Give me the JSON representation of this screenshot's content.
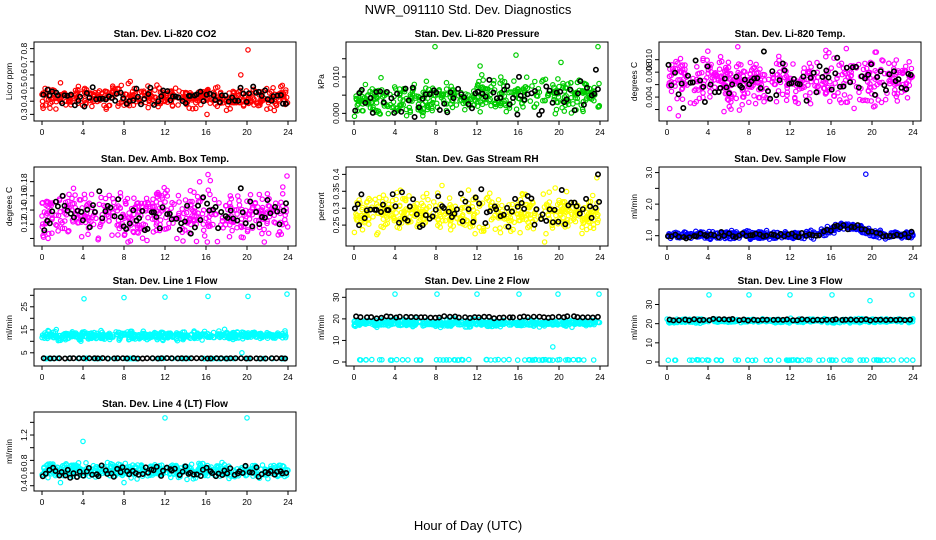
{
  "figure": {
    "title": "NWR_091110  Std. Dev. Diagnostics",
    "xlabel": "Hour of Day (UTC)"
  },
  "colors": {
    "red": "#ff0000",
    "green": "#00cc00",
    "magenta": "#ff00ff",
    "yellow": "#ffff00",
    "blue": "#0000ff",
    "cyan": "#00ffff",
    "black": "#000000"
  },
  "chart_data": [
    {
      "type": "scatter",
      "title": "Stan. Dev. Li-820 CO2",
      "ylabel": "Licor ppm",
      "xlim": [
        0,
        24
      ],
      "xticks": [
        0,
        4,
        8,
        12,
        16,
        20,
        24
      ],
      "ylim": [
        0.28,
        0.82
      ],
      "yticks": [
        0.3,
        0.4,
        0.5,
        0.6,
        0.7,
        0.8
      ],
      "series": [
        {
          "name": "all",
          "color": "red",
          "count": 420,
          "center": 0.43,
          "spread": 0.04,
          "outliers": [
            [
              20.1,
              0.79
            ],
            [
              19.4,
              0.6
            ],
            [
              16.1,
              0.3
            ],
            [
              8.6,
              0.55
            ],
            [
              1.8,
              0.54
            ]
          ]
        },
        {
          "name": "hourly",
          "color": "black",
          "count": 80,
          "center": 0.43,
          "spread": 0.035,
          "outliers": []
        }
      ]
    },
    {
      "type": "scatter",
      "title": "Stan. Dev. Li-820 Pressure",
      "ylabel": "kPa",
      "xlim": [
        0,
        24
      ],
      "xticks": [
        0,
        4,
        8,
        12,
        16,
        20,
        24
      ],
      "ylim": [
        -0.001,
        0.0185
      ],
      "yticks": [
        0.0,
        0.005,
        0.01,
        0.015
      ],
      "ytick_labels": [
        "0.000",
        "",
        "0.010",
        ""
      ],
      "series": [
        {
          "name": "all",
          "color": "green",
          "count": 420,
          "center": 0.0035,
          "spread": 0.0022,
          "trend": 0.0035,
          "outliers": [
            [
              7.9,
              0.0183
            ],
            [
              15.8,
              0.016
            ],
            [
              23.8,
              0.0183
            ],
            [
              12.3,
              0.013
            ],
            [
              20.2,
              0.014
            ]
          ]
        },
        {
          "name": "hourly",
          "color": "black",
          "count": 70,
          "center": 0.0035,
          "spread": 0.0022,
          "trend": 0.0035,
          "outliers": [
            [
              23.6,
              0.012
            ],
            [
              16.1,
              0.01
            ]
          ]
        }
      ]
    },
    {
      "type": "scatter",
      "title": "Stan. Dev. Li-820 Temp.",
      "ylabel": "degrees C",
      "xlim": [
        0,
        24
      ],
      "xticks": [
        0,
        4,
        8,
        12,
        16,
        20,
        24
      ],
      "ylim": [
        0.0008,
        0.0122
      ],
      "yticks": [
        0.002,
        0.004,
        0.006,
        0.008,
        0.01
      ],
      "ytick_labels": [
        "",
        "0.004",
        "",
        "0.008",
        "0.010"
      ],
      "series": [
        {
          "name": "all",
          "color": "magenta",
          "count": 460,
          "center": 0.0066,
          "spread": 0.0019,
          "outliers": [
            [
              1.1,
              0.001
            ],
            [
              15.5,
              0.0115
            ],
            [
              20.3,
              0.0112
            ]
          ]
        },
        {
          "name": "hourly",
          "color": "black",
          "count": 80,
          "center": 0.0066,
          "spread": 0.0017,
          "outliers": []
        }
      ]
    },
    {
      "type": "scatter",
      "title": "Stan. Dev. Amb. Box Temp.",
      "ylabel": "degrees C",
      "xlim": [
        0,
        24
      ],
      "xticks": [
        0,
        4,
        8,
        12,
        16,
        20,
        24
      ],
      "ylim": [
        0.095,
        0.195
      ],
      "yticks": [
        0.1,
        0.12,
        0.14,
        0.16,
        0.18
      ],
      "ytick_labels": [
        "",
        "0.12",
        "0.14",
        "0.16",
        "0.18"
      ],
      "series": [
        {
          "name": "all",
          "color": "magenta",
          "count": 460,
          "center": 0.134,
          "spread": 0.017,
          "outliers": [
            [
              0.6,
              0.1
            ],
            [
              16.2,
              0.19
            ],
            [
              23.9,
              0.188
            ]
          ]
        },
        {
          "name": "hourly",
          "color": "black",
          "count": 80,
          "center": 0.134,
          "spread": 0.013,
          "outliers": []
        }
      ]
    },
    {
      "type": "scatter",
      "title": "Stan. Dev. Gas Stream RH",
      "ylabel": "percent",
      "xlim": [
        0,
        24
      ],
      "xticks": [
        0,
        4,
        8,
        12,
        16,
        20,
        24
      ],
      "ylim": [
        0.2,
        0.41
      ],
      "yticks": [
        0.25,
        0.3,
        0.35,
        0.4
      ],
      "series": [
        {
          "name": "all",
          "color": "yellow",
          "count": 460,
          "center": 0.285,
          "spread": 0.028,
          "outliers": [
            [
              18.6,
              0.2
            ],
            [
              23.7,
              0.39
            ]
          ]
        },
        {
          "name": "hourly",
          "color": "black",
          "count": 80,
          "center": 0.295,
          "spread": 0.028,
          "outliers": [
            [
              23.8,
              0.4
            ],
            [
              0.5,
              0.25
            ]
          ]
        }
      ]
    },
    {
      "type": "scatter",
      "title": "Stan. Dev. Sample Flow",
      "ylabel": "ml/min",
      "xlim": [
        0,
        24
      ],
      "xticks": [
        0,
        4,
        8,
        12,
        16,
        20,
        24
      ],
      "ylim": [
        0.8,
        3.05
      ],
      "yticks": [
        1.0,
        1.5,
        2.0,
        2.5,
        3.0
      ],
      "ytick_labels": [
        "1.0",
        "",
        "2.0",
        "",
        "3.0"
      ],
      "series": [
        {
          "name": "all",
          "color": "blue",
          "count": 420,
          "center": 1.02,
          "spread": 0.06,
          "hump": 0.28,
          "outliers": [
            [
              19.4,
              2.95
            ]
          ]
        },
        {
          "name": "hourly",
          "color": "black",
          "count": 70,
          "center": 1.02,
          "spread": 0.05,
          "hump": 0.28,
          "outliers": []
        }
      ]
    },
    {
      "type": "scatter",
      "title": "Stan. Dev. Line 1 Flow",
      "ylabel": "ml/min",
      "xlim": [
        0,
        24
      ],
      "xticks": [
        0,
        4,
        8,
        12,
        16,
        20,
        24
      ],
      "ylim": [
        1,
        31
      ],
      "yticks": [
        5,
        10,
        15,
        20,
        25,
        30
      ],
      "ytick_labels": [
        "5",
        "",
        "15",
        "",
        "25",
        ""
      ],
      "series": [
        {
          "name": "all",
          "color": "cyan",
          "count": 500,
          "center": 12.5,
          "spread": 0.9,
          "outliers": [
            [
              4.1,
              28.5
            ],
            [
              8.0,
              29.0
            ],
            [
              12.0,
              29.2
            ],
            [
              16.2,
              29.5
            ],
            [
              20.1,
              29.5
            ],
            [
              23.9,
              30.5
            ],
            [
              19.5,
              5.0
            ]
          ]
        },
        {
          "name": "low",
          "color": "cyan",
          "count": 60,
          "center": 2.5,
          "spread": 0.05,
          "outliers": []
        },
        {
          "name": "hourly",
          "color": "black",
          "count": 50,
          "center": 2.6,
          "spread": 0.05,
          "outliers": []
        }
      ]
    },
    {
      "type": "scatter",
      "title": "Stan. Dev. Line 2 Flow",
      "ylabel": "ml/min",
      "xlim": [
        0,
        24
      ],
      "xticks": [
        0,
        4,
        8,
        12,
        16,
        20,
        24
      ],
      "ylim": [
        0,
        32
      ],
      "yticks": [
        0,
        10,
        20,
        30
      ],
      "series": [
        {
          "name": "all",
          "color": "cyan",
          "count": 500,
          "center": 18.0,
          "spread": 0.8,
          "outliers": [
            [
              4.0,
              31.5
            ],
            [
              8.1,
              31.5
            ],
            [
              12.0,
              31.5
            ],
            [
              16.1,
              31.5
            ],
            [
              19.9,
              31.5
            ],
            [
              23.9,
              31.5
            ],
            [
              19.4,
              7.0
            ]
          ]
        },
        {
          "name": "low",
          "color": "cyan",
          "count": 60,
          "center": 1.0,
          "spread": 0.08,
          "outliers": []
        },
        {
          "name": "hourly",
          "color": "black",
          "count": 50,
          "center": 20.8,
          "spread": 0.25,
          "outliers": []
        }
      ]
    },
    {
      "type": "scatter",
      "title": "Stan. Dev. Line 3 Flow",
      "ylabel": "ml/min",
      "xlim": [
        0,
        24
      ],
      "xticks": [
        0,
        4,
        8,
        12,
        16,
        20,
        24
      ],
      "ylim": [
        0,
        36
      ],
      "yticks": [
        0,
        10,
        20,
        30
      ],
      "series": [
        {
          "name": "all",
          "color": "cyan",
          "count": 480,
          "center": 21.5,
          "spread": 0.5,
          "outliers": [
            [
              4.1,
              35
            ],
            [
              8.0,
              35
            ],
            [
              12.0,
              35
            ],
            [
              16.1,
              35
            ],
            [
              19.8,
              32
            ],
            [
              23.9,
              35
            ]
          ]
        },
        {
          "name": "low",
          "color": "cyan",
          "count": 60,
          "center": 1.0,
          "spread": 0.08,
          "outliers": []
        },
        {
          "name": "hourly",
          "color": "black",
          "count": 50,
          "center": 22.0,
          "spread": 0.25,
          "outliers": []
        }
      ]
    },
    {
      "type": "scatter",
      "title": "Stan. Dev. Line 4 (LT) Flow",
      "ylabel": "ml/min",
      "xlim": [
        0,
        24
      ],
      "xticks": [
        0,
        4,
        8,
        12,
        16,
        20,
        24
      ],
      "ylim": [
        0.38,
        1.5
      ],
      "yticks": [
        0.4,
        0.6,
        0.8,
        1.0,
        1.2,
        1.4
      ],
      "ytick_labels": [
        "0.4",
        "0.6",
        "0.8",
        "",
        "1.2",
        ""
      ],
      "series": [
        {
          "name": "all",
          "color": "cyan",
          "count": 480,
          "center": 0.64,
          "spread": 0.055,
          "outliers": [
            [
              4.0,
              1.1
            ],
            [
              12.0,
              1.47
            ],
            [
              20.0,
              1.47
            ],
            [
              8.0,
              0.45
            ],
            [
              1.8,
              0.45
            ]
          ]
        },
        {
          "name": "hourly",
          "color": "black",
          "count": 80,
          "center": 0.63,
          "spread": 0.045,
          "outliers": []
        }
      ]
    }
  ]
}
